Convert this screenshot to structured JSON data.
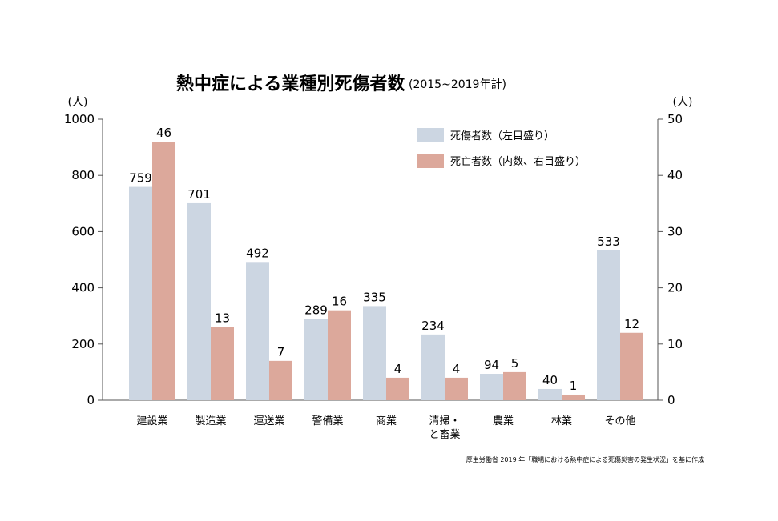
{
  "chart_data": {
    "type": "bar",
    "title": "熱中症による業種別死傷者数",
    "subtitle": "(2015~2019年計)",
    "y_left_unit": "(人)",
    "y_right_unit": "(人)",
    "ylim_left": [
      0,
      1000
    ],
    "ylim_right": [
      0,
      50
    ],
    "yticks_left": [
      "0",
      "200",
      "400",
      "600",
      "800",
      "1000"
    ],
    "yticks_right": [
      "0",
      "10",
      "20",
      "30",
      "40",
      "50"
    ],
    "categories": [
      [
        "建設業"
      ],
      [
        "製造業"
      ],
      [
        "運送業"
      ],
      [
        "警備業"
      ],
      [
        "商業"
      ],
      [
        "清掃・",
        "と畜業"
      ],
      [
        "農業"
      ],
      [
        "林業"
      ],
      [
        "その他"
      ]
    ],
    "series": [
      {
        "name": "死傷者数（左目盛り）",
        "axis": "left",
        "color": "#ccd6e2",
        "values": [
          759,
          701,
          492,
          289,
          335,
          234,
          94,
          40,
          533
        ]
      },
      {
        "name": "死亡者数（内数、右目盛り）",
        "axis": "right",
        "color": "#dca89b",
        "values": [
          46,
          13,
          7,
          16,
          4,
          4,
          5,
          1,
          12
        ]
      }
    ],
    "legend_position": "top-right",
    "grid": false,
    "source_note": "厚生労働省 2019 年「職場における熱中症による死傷災害の発生状況」を基に作成"
  }
}
